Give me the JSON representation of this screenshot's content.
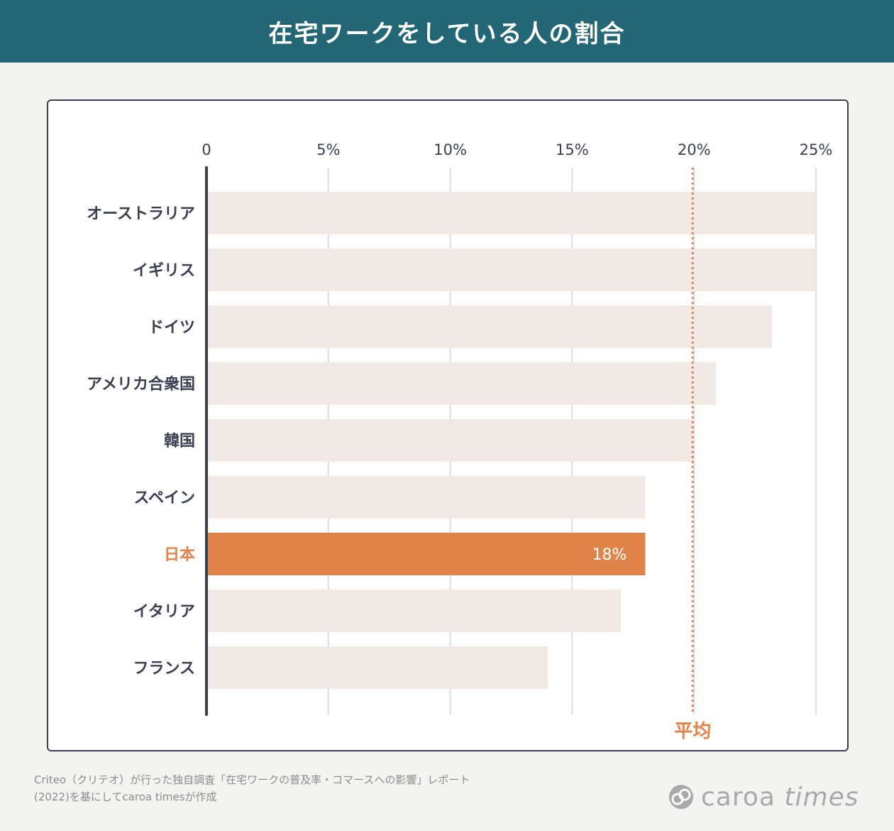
{
  "header": {
    "title": "在宅ワークをしている人の割合"
  },
  "chart_data": {
    "type": "bar",
    "orientation": "horizontal",
    "title": "在宅ワークをしている人の割合",
    "xlim": [
      0,
      25
    ],
    "x_ticks": [
      {
        "value": 0,
        "label": "0"
      },
      {
        "value": 5,
        "label": "5%"
      },
      {
        "value": 10,
        "label": "10%"
      },
      {
        "value": 15,
        "label": "15%"
      },
      {
        "value": 20,
        "label": "20%"
      },
      {
        "value": 25,
        "label": "25%"
      }
    ],
    "categories": [
      "オーストラリア",
      "イギリス",
      "ドイツ",
      "アメリカ合衆国",
      "韓国",
      "スペイン",
      "日本",
      "イタリア",
      "フランス"
    ],
    "values": [
      25,
      25,
      23.2,
      20.9,
      20,
      18,
      18,
      17,
      14
    ],
    "highlight": {
      "category": "日本",
      "value_label": "18%",
      "color": "#e0844a"
    },
    "reference_line": {
      "label": "平均",
      "value": 20
    },
    "grid": true,
    "colors": {
      "bar": "#f1e9e4",
      "highlight": "#e0844a",
      "axis": "#3a4051",
      "grid": "#dcdce6",
      "label": "#3a4051",
      "average": "#e0844a"
    }
  },
  "footer": {
    "lines": [
      "Criteo（クリテオ）が行った独自調査「在宅ワークの普及率・コマースへの影響」レポート",
      "(2022)を基にしてcaroa timesが作成"
    ]
  },
  "logo": {
    "word1": "caroa",
    "word2": "times"
  }
}
